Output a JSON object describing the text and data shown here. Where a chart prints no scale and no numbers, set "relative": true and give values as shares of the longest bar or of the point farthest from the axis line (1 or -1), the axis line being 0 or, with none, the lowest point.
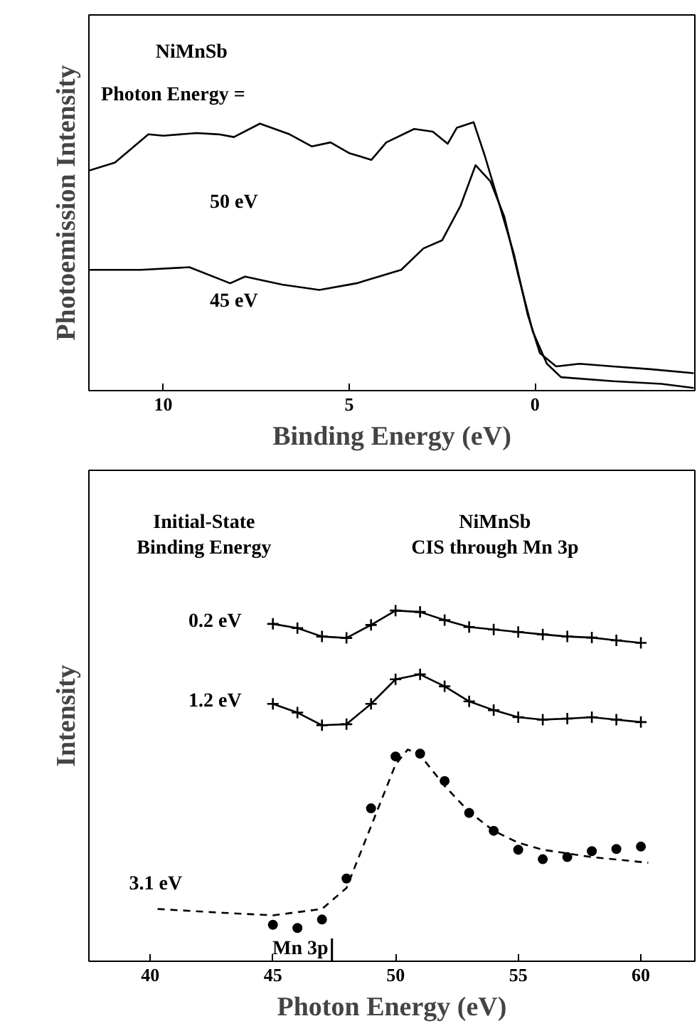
{
  "chart_data": [
    {
      "type": "line",
      "xlabel": "Binding Energy (eV)",
      "ylabel": "Photoemission Intensity",
      "relative": true,
      "xlim": [
        12,
        -4.3
      ],
      "xticks": [
        10,
        5,
        0
      ],
      "tick_labels": "x",
      "grid": false,
      "legend": false,
      "annotations": [
        "NiMnSb",
        "Photon Energy ="
      ],
      "series": [
        {
          "name": "50 eV",
          "color": "#000000",
          "x": [
            12.0,
            11.3,
            10.4,
            10.0,
            9.1,
            8.5,
            8.1,
            7.4,
            6.6,
            6.0,
            5.5,
            5.0,
            4.4,
            4.0,
            3.25,
            2.75,
            2.35,
            2.1,
            1.65,
            1.35,
            0.95,
            0.57,
            0.2,
            -0.13,
            -0.57,
            -1.2,
            -2.1,
            -3.1,
            -4.27
          ],
          "values": [
            0.82,
            0.85,
            0.955,
            0.95,
            0.96,
            0.955,
            0.945,
            0.995,
            0.955,
            0.91,
            0.925,
            0.885,
            0.86,
            0.925,
            0.975,
            0.965,
            0.92,
            0.98,
            1.0,
            0.875,
            0.69,
            0.51,
            0.285,
            0.14,
            0.09,
            0.1,
            0.09,
            0.08,
            0.065
          ]
        },
        {
          "name": "45 eV",
          "color": "#000000",
          "x": [
            12.0,
            10.6,
            9.3,
            8.2,
            7.8,
            6.8,
            5.8,
            4.8,
            3.6,
            3.0,
            2.5,
            2.0,
            1.6,
            1.2,
            0.83,
            0.45,
            0.06,
            -0.32,
            -0.7,
            -2.1,
            -3.4,
            -4.27
          ],
          "values": [
            0.45,
            0.45,
            0.46,
            0.4,
            0.425,
            0.395,
            0.375,
            0.4,
            0.45,
            0.53,
            0.56,
            0.69,
            0.84,
            0.78,
            0.65,
            0.43,
            0.22,
            0.1,
            0.05,
            0.035,
            0.025,
            0.01
          ]
        }
      ]
    },
    {
      "type": "line",
      "xlabel": "Photon Energy (eV)",
      "ylabel": "Intensity",
      "relative": true,
      "xlim": [
        37.5,
        62.2
      ],
      "xticks": [
        40,
        45,
        50,
        55,
        60
      ],
      "tick_labels": "x",
      "grid": false,
      "legend": false,
      "annotations": [
        "Initial-State\nBinding Energy",
        "NiMnSb\nCIS through Mn 3p",
        "Mn 3p"
      ],
      "series": [
        {
          "name": "0.2 eV",
          "color": "#000000",
          "marker": "cross",
          "x": [
            45,
            46,
            47,
            48,
            49,
            50,
            51,
            52,
            53,
            54,
            55,
            56,
            57,
            58,
            59,
            60
          ],
          "values": [
            0.962,
            0.95,
            0.926,
            0.922,
            0.959,
            1.0,
            0.996,
            0.973,
            0.953,
            0.946,
            0.939,
            0.932,
            0.926,
            0.923,
            0.915,
            0.908
          ]
        },
        {
          "name": "1.2 eV",
          "color": "#000000",
          "marker": "cross",
          "x": [
            45,
            46,
            47,
            48,
            49,
            50,
            51,
            52,
            53,
            54,
            55,
            56,
            57,
            58,
            59,
            60
          ],
          "values": [
            0.734,
            0.709,
            0.673,
            0.676,
            0.734,
            0.804,
            0.818,
            0.784,
            0.741,
            0.716,
            0.696,
            0.689,
            0.692,
            0.696,
            0.689,
            0.682
          ]
        },
        {
          "type": "scatter",
          "color": "#000000",
          "marker": "circle",
          "x": [
            45,
            46,
            47,
            48,
            49,
            50,
            51,
            52,
            53,
            54,
            55,
            56,
            57,
            58,
            59,
            60
          ],
          "values": [
            0.104,
            0.095,
            0.119,
            0.236,
            0.436,
            0.584,
            0.592,
            0.514,
            0.423,
            0.372,
            0.318,
            0.291,
            0.297,
            0.314,
            0.32,
            0.327
          ]
        },
        {
          "name": "3.1 eV",
          "type": "line",
          "color": "#000000",
          "line_style": "dashed",
          "x": [
            40.3,
            43,
            45,
            47,
            48,
            49,
            50,
            50.5,
            51,
            52,
            53,
            54,
            55,
            56,
            58,
            60.3
          ],
          "values": [
            0.149,
            0.138,
            0.131,
            0.149,
            0.209,
            0.385,
            0.561,
            0.604,
            0.588,
            0.5,
            0.426,
            0.372,
            0.338,
            0.318,
            0.297,
            0.281
          ]
        }
      ]
    }
  ]
}
